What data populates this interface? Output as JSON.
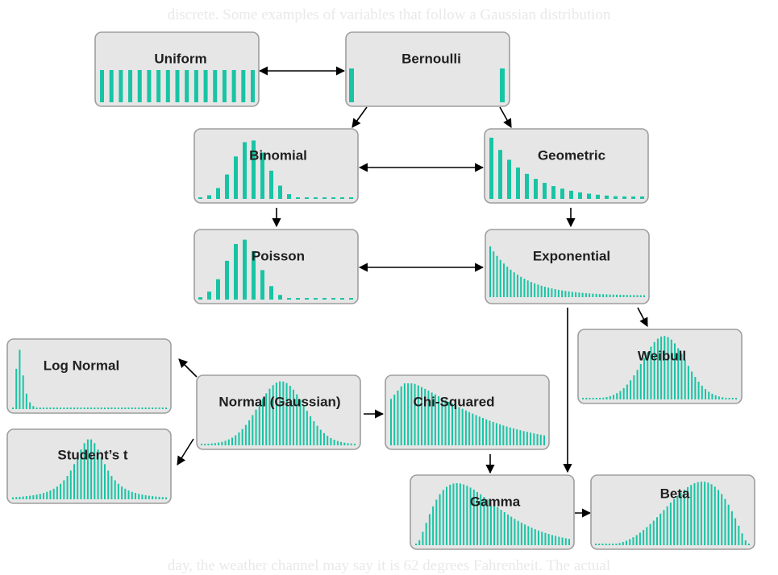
{
  "background_text": {
    "top": "discrete. Some examples of variables that follow a Gaussian distribution",
    "bottom": "day, the weather channel may say it is 62 degrees Fahrenheit. The actual"
  },
  "colors": {
    "bar": "#18c4a4",
    "box_fill": "#e6e6e6",
    "box_border": "#9e9e9e",
    "arrow": "#000000",
    "label": "#1f1f1f"
  },
  "nodes": [
    {
      "id": "uniform",
      "label": "Uniform",
      "shape": "uniform"
    },
    {
      "id": "bernoulli",
      "label": "Bernoulli",
      "shape": "bernoulli"
    },
    {
      "id": "binomial",
      "label": "Binomial",
      "shape": "binomial"
    },
    {
      "id": "geometric",
      "label": "Geometric",
      "shape": "geometric"
    },
    {
      "id": "poisson",
      "label": "Poisson",
      "shape": "poisson"
    },
    {
      "id": "exponential",
      "label": "Exponential",
      "shape": "exponential"
    },
    {
      "id": "weibull",
      "label": "Weibull",
      "shape": "weibull"
    },
    {
      "id": "lognormal",
      "label": "Log Normal",
      "shape": "lognormal"
    },
    {
      "id": "normal",
      "label": "Normal (Gaussian)",
      "shape": "normal"
    },
    {
      "id": "chisquared",
      "label": "Chi-Squared",
      "shape": "chisquared"
    },
    {
      "id": "studentt",
      "label": "Student’s t",
      "shape": "studentt"
    },
    {
      "id": "gamma",
      "label": "Gamma",
      "shape": "gamma"
    },
    {
      "id": "beta",
      "label": "Beta",
      "shape": "beta"
    }
  ],
  "edges": [
    {
      "from": "uniform",
      "to": "bernoulli",
      "bidirectional": true
    },
    {
      "from": "bernoulli",
      "to": "binomial",
      "bidirectional": false
    },
    {
      "from": "bernoulli",
      "to": "geometric",
      "bidirectional": false
    },
    {
      "from": "binomial",
      "to": "geometric",
      "bidirectional": true
    },
    {
      "from": "binomial",
      "to": "poisson",
      "bidirectional": false
    },
    {
      "from": "geometric",
      "to": "exponential",
      "bidirectional": false
    },
    {
      "from": "poisson",
      "to": "exponential",
      "bidirectional": true
    },
    {
      "from": "exponential",
      "to": "weibull",
      "bidirectional": false
    },
    {
      "from": "exponential",
      "to": "gamma",
      "bidirectional": false
    },
    {
      "from": "normal",
      "to": "lognormal",
      "bidirectional": false
    },
    {
      "from": "normal",
      "to": "studentt",
      "bidirectional": false
    },
    {
      "from": "normal",
      "to": "chisquared",
      "bidirectional": false
    },
    {
      "from": "chisquared",
      "to": "gamma",
      "bidirectional": false
    },
    {
      "from": "gamma",
      "to": "beta",
      "bidirectional": false
    }
  ]
}
